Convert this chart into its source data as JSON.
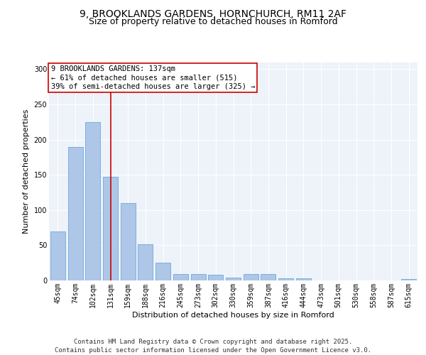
{
  "title_line1": "9, BROOKLANDS GARDENS, HORNCHURCH, RM11 2AF",
  "title_line2": "Size of property relative to detached houses in Romford",
  "xlabel": "Distribution of detached houses by size in Romford",
  "ylabel": "Number of detached properties",
  "categories": [
    "45sqm",
    "74sqm",
    "102sqm",
    "131sqm",
    "159sqm",
    "188sqm",
    "216sqm",
    "245sqm",
    "273sqm",
    "302sqm",
    "330sqm",
    "359sqm",
    "387sqm",
    "416sqm",
    "444sqm",
    "473sqm",
    "501sqm",
    "530sqm",
    "558sqm",
    "587sqm",
    "615sqm"
  ],
  "values": [
    70,
    190,
    225,
    147,
    110,
    51,
    25,
    9,
    9,
    8,
    4,
    9,
    9,
    3,
    3,
    0,
    0,
    0,
    0,
    0,
    2
  ],
  "bar_color": "#aec6e8",
  "bar_edge_color": "#5a9fd4",
  "vline_x": 3,
  "vline_color": "#cc0000",
  "annotation_text": "9 BROOKLANDS GARDENS: 137sqm\n← 61% of detached houses are smaller (515)\n39% of semi-detached houses are larger (325) →",
  "annotation_box_color": "#ffffff",
  "annotation_box_edge": "#cc0000",
  "ylim": [
    0,
    310
  ],
  "yticks": [
    0,
    50,
    100,
    150,
    200,
    250,
    300
  ],
  "background_color": "#eef2f9",
  "footer_text": "Contains HM Land Registry data © Crown copyright and database right 2025.\nContains public sector information licensed under the Open Government Licence v3.0.",
  "title_fontsize": 10,
  "subtitle_fontsize": 9,
  "axis_label_fontsize": 8,
  "tick_fontsize": 7,
  "footer_fontsize": 6.5,
  "annotation_fontsize": 7.5
}
